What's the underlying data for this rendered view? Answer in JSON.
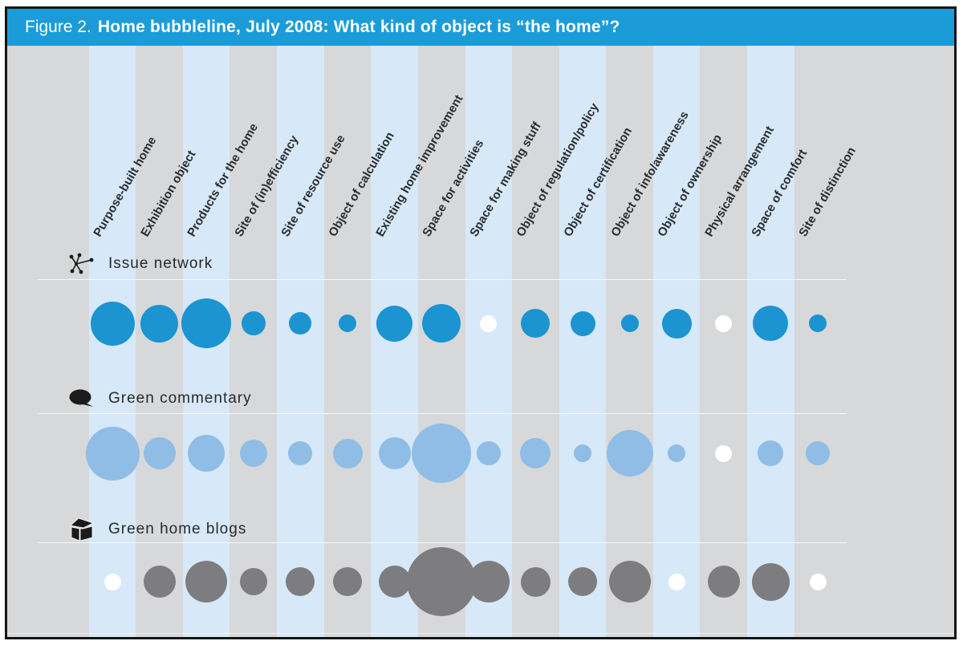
{
  "header": {
    "prefix": "Figure 2.",
    "title": "Home bubbleline, July 2008: What kind of object is “the home”?"
  },
  "colors": {
    "header_bg": "#1b9cd8",
    "chart_bg": "#d7d8d9",
    "stripe_blue": "#d7e8f8",
    "issue_network_bubble": "#1b94d1",
    "green_commentary_bubble": "#8fbde5",
    "green_home_blogs_bubble": "#7d7d7f",
    "zero_bubble": "#ffffff",
    "label_text": "#2a2c2e",
    "header_text": "#ffffff"
  },
  "chart_data": {
    "type": "bubbleline",
    "title": "Home bubbleline, July 2008: What kind of object is “the home”?",
    "x_axis": "object framings of the home (columns)",
    "y_axis": "sources (rows)",
    "legend_position": "row headers at left",
    "grid": "alternating vertical stripes, blue on odd columns",
    "zero_diameter": 21,
    "size_unit": "bubble diameter in px; 0 = empty (white) bubble",
    "categories": [
      "Purpose-built home",
      "Exhibition object",
      "Products for the home",
      "Site of (in)efficiency",
      "Site of resource use",
      "Object of calculation",
      "Existing home improvement",
      "Space for activities",
      "Space for making stuff",
      "Object of regulation/policy",
      "Object of certification",
      "Object of info/awareness",
      "Object of ownership",
      "Physical arrangement",
      "Space of comfort",
      "Site of distinction"
    ],
    "series": [
      {
        "name": "Issue network",
        "icon": "network-icon",
        "color": "#1b94d1",
        "sizes": [
          55,
          47,
          62,
          30,
          28,
          22,
          45,
          48,
          0,
          36,
          31,
          22,
          37,
          0,
          44,
          22
        ]
      },
      {
        "name": "Green commentary",
        "icon": "speech-bubble-icon",
        "color": "#8fbde5",
        "sizes": [
          67,
          40,
          46,
          34,
          30,
          37,
          40,
          74,
          30,
          38,
          22,
          58,
          22,
          0,
          32,
          30
        ]
      },
      {
        "name": "Green home blogs",
        "icon": "house-icon",
        "color": "#7d7d7f",
        "sizes": [
          0,
          40,
          52,
          34,
          36,
          36,
          40,
          86,
          52,
          37,
          36,
          52,
          0,
          40,
          47,
          0
        ]
      }
    ]
  }
}
